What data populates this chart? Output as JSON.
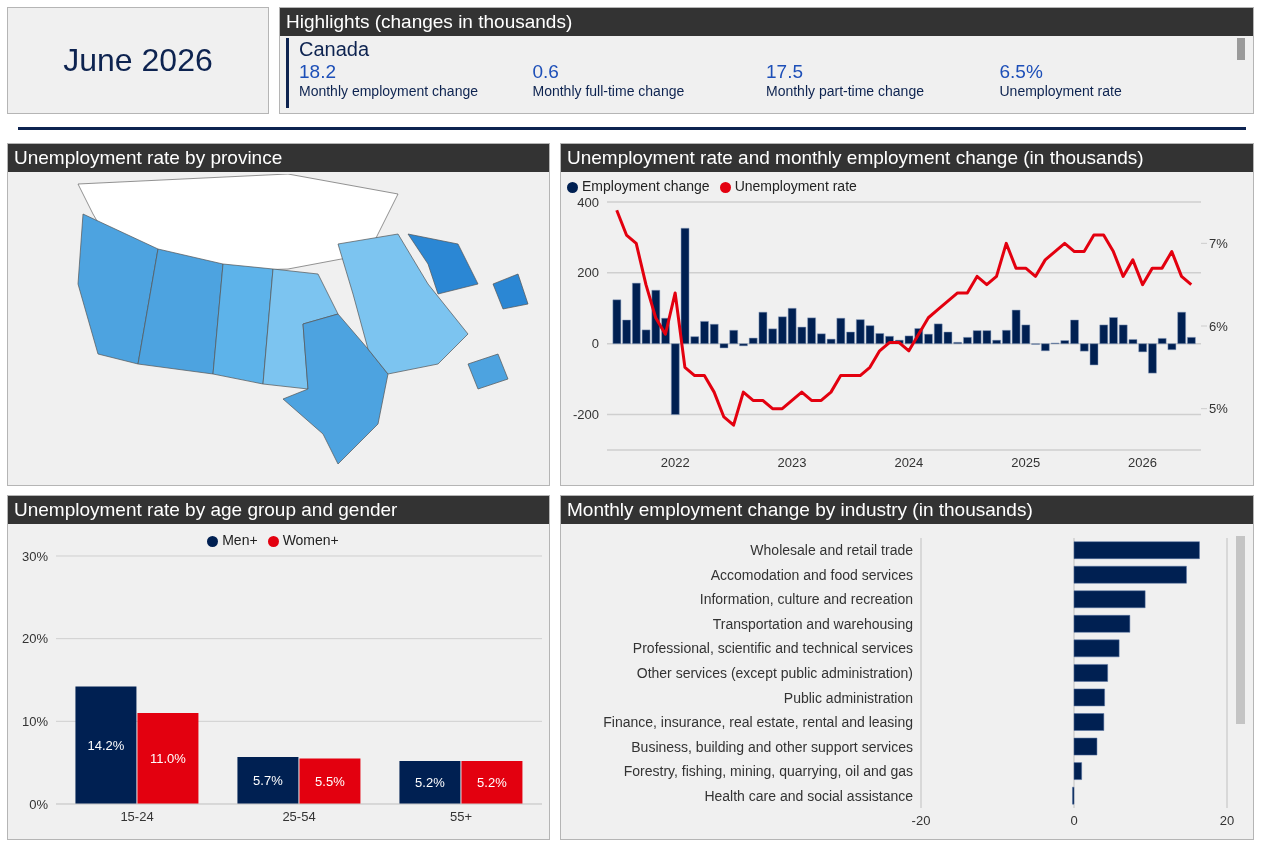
{
  "chart_data": [
    {
      "type": "other",
      "annotations": [
        "June 2026"
      ]
    },
    {
      "type": "other",
      "title": "Highlights (changes in thousands)",
      "annotations": [
        "Canada",
        "18.2",
        "Monthly employment change",
        "0.6",
        "Monthly full-time change",
        "17.5",
        "Monthly part-time change",
        "6.5%",
        "Unemployment rate"
      ]
    },
    {
      "type": "other",
      "title": "Unemployment rate by province"
    },
    {
      "type": "bar",
      "title": "Unemployment rate and monthly employment change (in thousands)",
      "x": [
        "2021-07",
        "2021-08",
        "2021-09",
        "2021-10",
        "2021-11",
        "2021-12",
        "2022-01",
        "2022-02",
        "2022-03",
        "2022-04",
        "2022-05",
        "2022-06",
        "2022-07",
        "2022-08",
        "2022-09",
        "2022-10",
        "2022-11",
        "2022-12",
        "2023-01",
        "2023-02",
        "2023-03",
        "2023-04",
        "2023-05",
        "2023-06",
        "2023-07",
        "2023-08",
        "2023-09",
        "2023-10",
        "2023-11",
        "2023-12",
        "2024-01",
        "2024-02",
        "2024-03",
        "2024-04",
        "2024-05",
        "2024-06",
        "2024-07",
        "2024-08",
        "2024-09",
        "2024-10",
        "2024-11",
        "2024-12",
        "2025-01",
        "2025-02",
        "2025-03",
        "2025-04",
        "2025-05",
        "2025-06",
        "2025-07",
        "2025-08",
        "2025-09",
        "2025-10",
        "2025-11",
        "2025-12",
        "2026-01",
        "2026-02",
        "2026-03",
        "2026-04",
        "2026-05",
        "2026-06"
      ],
      "series": [
        {
          "name": "Employment change",
          "type": "bar",
          "color": "#002052",
          "values": [
            124,
            67,
            171,
            39,
            151,
            72,
            -200,
            326,
            20,
            63,
            55,
            -12,
            38,
            -6,
            16,
            89,
            42,
            76,
            100,
            47,
            73,
            28,
            13,
            72,
            33,
            68,
            51,
            29,
            21,
            10,
            22,
            43,
            27,
            56,
            33,
            4,
            18,
            37,
            37,
            10,
            38,
            95,
            53,
            -2,
            -20,
            2,
            9,
            67,
            -21,
            -60,
            53,
            74,
            53,
            12,
            -23,
            -83,
            15,
            -17,
            89,
            18
          ]
        },
        {
          "name": "Unemployment rate",
          "type": "line",
          "axis": "y2",
          "color": "#e3000f",
          "values": [
            7.4,
            7.1,
            7.0,
            6.5,
            6.1,
            5.9,
            6.4,
            5.5,
            5.4,
            5.4,
            5.2,
            4.9,
            4.8,
            5.2,
            5.1,
            5.1,
            5.0,
            5.0,
            5.1,
            5.2,
            5.1,
            5.1,
            5.2,
            5.4,
            5.4,
            5.4,
            5.5,
            5.7,
            5.8,
            5.8,
            5.7,
            5.9,
            6.1,
            6.2,
            6.3,
            6.4,
            6.4,
            6.6,
            6.5,
            6.6,
            7.0,
            6.7,
            6.7,
            6.6,
            6.8,
            6.9,
            7.0,
            6.9,
            6.9,
            7.1,
            7.1,
            6.9,
            6.6,
            6.8,
            6.5,
            6.7,
            6.7,
            6.9,
            6.6,
            6.5
          ]
        }
      ],
      "xlim": [
        "2021-06",
        "2026-07"
      ],
      "xticks": [
        {
          "value": "2022-01",
          "label": "2022"
        },
        {
          "value": "2023-01",
          "label": "2023"
        },
        {
          "value": "2024-01",
          "label": "2024"
        },
        {
          "value": "2025-01",
          "label": "2025"
        },
        {
          "value": "2026-01",
          "label": "2026"
        }
      ],
      "ylim": [
        -300,
        400
      ],
      "yticks": [
        -200,
        0,
        200,
        400
      ],
      "y2lim": [
        4.5,
        7.5
      ],
      "y2ticks": [
        {
          "value": 5,
          "label": "5%"
        },
        {
          "value": 6,
          "label": "6%"
        },
        {
          "value": 7,
          "label": "7%"
        }
      ],
      "grid": "y",
      "legend": "top left",
      "marker": "none"
    },
    {
      "type": "bar",
      "title": "Unemployment rate by age group and gender",
      "categories": [
        "15-24",
        "25-54",
        "55+"
      ],
      "series": [
        {
          "name": "Men+",
          "color": "#002052",
          "values": [
            14.2,
            5.7,
            5.2
          ],
          "value_labels": [
            "14.2%",
            "5.7%",
            "5.2%"
          ]
        },
        {
          "name": "Women+",
          "color": "#e3000f",
          "values": [
            11.0,
            5.5,
            5.2
          ],
          "value_labels": [
            "11.0%",
            "5.5%",
            "5.2%"
          ]
        }
      ],
      "ylim": [
        0,
        30
      ],
      "yticks": [
        {
          "value": 0,
          "label": "0%"
        },
        {
          "value": 10,
          "label": "10%"
        },
        {
          "value": 20,
          "label": "20%"
        },
        {
          "value": 30,
          "label": "30%"
        }
      ],
      "grid": "y",
      "legend": "top"
    },
    {
      "type": "bar",
      "orientation": "horizontal",
      "title": "Monthly employment change by industry (in thousands)",
      "categories": [
        "Wholesale and retail trade",
        "Accomodation and food services",
        "Information, culture and recreation",
        "Transportation and warehousing",
        "Professional, scientific and technical services",
        "Other services (except public administration)",
        "Public administration",
        "Finance, insurance, real estate, rental and leasing",
        "Business, building and other support services",
        "Forestry, fishing, mining, quarrying, oil and gas",
        "Health care and social assistance"
      ],
      "values": [
        16.4,
        14.7,
        9.3,
        7.3,
        5.9,
        4.4,
        4.0,
        3.9,
        3.0,
        1.0,
        -0.2
      ],
      "color": "#002052",
      "xlim": [
        -20,
        20
      ],
      "xticks": [
        -20,
        0,
        20
      ],
      "grid": "x"
    }
  ]
}
